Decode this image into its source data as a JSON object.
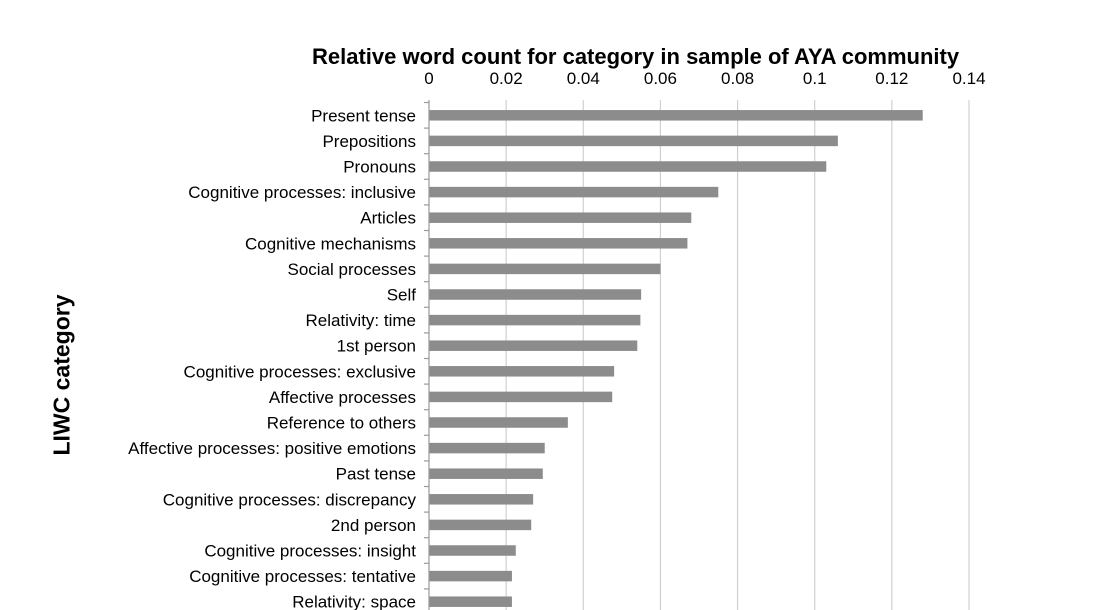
{
  "chart_data": {
    "type": "bar",
    "orientation": "horizontal",
    "title": "Relative word count for category in sample of AYA community",
    "xlabel": "",
    "ylabel": "LIWC category",
    "xlim": [
      0,
      0.14
    ],
    "x_ticks": [
      "0",
      "0.02",
      "0.04",
      "0.06",
      "0.08",
      "0.1",
      "0.12",
      "0.14"
    ],
    "x_axis_position": "top",
    "grid": "vertical",
    "bar_color": "#8c8c8c",
    "categories": [
      "Present tense",
      "Prepositions",
      "Pronouns",
      "Cognitive processes: inclusive",
      "Articles",
      "Cognitive mechanisms",
      "Social processes",
      "Self",
      "Relativity: time",
      "1st person",
      "Cognitive processes: exclusive",
      "Affective processes",
      "Reference to others",
      "Affective processes: positive emotions",
      "Past tense",
      "Cognitive processes: discrepancy",
      "2nd person",
      "Cognitive processes: insight",
      "Cognitive processes: tentative",
      "Relativity: space"
    ],
    "values": [
      0.128,
      0.106,
      0.103,
      0.075,
      0.068,
      0.067,
      0.06,
      0.055,
      0.0548,
      0.054,
      0.048,
      0.0475,
      0.036,
      0.03,
      0.0295,
      0.027,
      0.0265,
      0.0225,
      0.0215,
      0.0215
    ]
  }
}
